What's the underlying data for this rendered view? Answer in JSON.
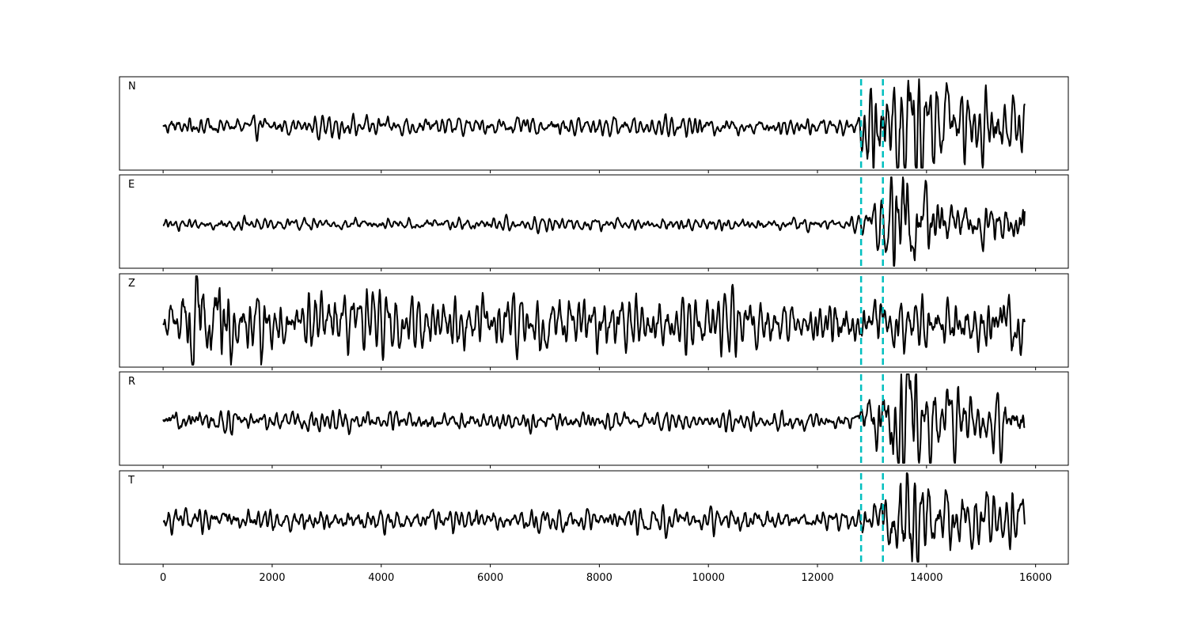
{
  "chart_data": {
    "type": "line",
    "layout": "five vertically stacked panels sharing the x-axis",
    "x_range": [
      -800,
      16600
    ],
    "x_ticks": [
      "0",
      "2000",
      "4000",
      "6000",
      "8000",
      "10000",
      "12000",
      "14000",
      "16000"
    ],
    "y_ticks_shown": false,
    "trace_x_extent": [
      0,
      15800
    ],
    "line_color": "#000000",
    "marker_color": "#00bfbf",
    "vertical_markers": [
      {
        "x": 12800,
        "style": "dashed"
      },
      {
        "x": 13200,
        "style": "dashed"
      }
    ],
    "panels": [
      {
        "label": "N",
        "noise": 0.22,
        "noise_start": 0.25,
        "envelope": [
          [
            1300,
            0.18
          ],
          [
            12700,
            0.17
          ],
          [
            12900,
            0.75
          ],
          [
            13700,
            1.25
          ],
          [
            14300,
            0.7
          ],
          [
            15800,
            0.45
          ]
        ],
        "peaks": [
          {
            "x": 13040,
            "a": 0.55
          },
          {
            "x": 13150,
            "a": -0.55
          },
          {
            "x": 13680,
            "a": 1.1
          },
          {
            "x": 13620,
            "a": -0.9
          },
          {
            "x": 14380,
            "a": 0.6
          }
        ]
      },
      {
        "label": "E",
        "noise": 0.12,
        "noise_start": 0.12,
        "envelope": [
          [
            1300,
            0.12
          ],
          [
            12600,
            0.12
          ],
          [
            13000,
            0.35
          ],
          [
            13600,
            1.25
          ],
          [
            14200,
            0.4
          ],
          [
            15800,
            0.45
          ]
        ],
        "peaks": [
          {
            "x": 13020,
            "a": 0.35
          },
          {
            "x": 13630,
            "a": 1.05
          },
          {
            "x": 13700,
            "a": -1.05
          },
          {
            "x": 13990,
            "a": 0.5
          }
        ],
        "end_value": 0.35
      },
      {
        "label": "Z",
        "noise": 0.45,
        "noise_start": 0.4,
        "envelope": [
          [
            300,
            0.45
          ],
          [
            400,
            1.2
          ],
          [
            900,
            1.1
          ],
          [
            1400,
            0.55
          ],
          [
            13000,
            0.45
          ],
          [
            15800,
            0.55
          ]
        ],
        "peaks": [
          {
            "x": 420,
            "a": 1.15
          },
          {
            "x": 480,
            "a": -1.1
          },
          {
            "x": 780,
            "a": 0.7
          },
          {
            "x": 820,
            "a": -0.6
          },
          {
            "x": 15640,
            "a": -0.6
          },
          {
            "x": 15480,
            "a": 0.6
          }
        ]
      },
      {
        "label": "R",
        "noise": 0.2,
        "noise_start": 0.2,
        "envelope": [
          [
            1300,
            0.2
          ],
          [
            12700,
            0.15
          ],
          [
            12900,
            0.65
          ],
          [
            13700,
            1.2
          ],
          [
            14300,
            0.6
          ],
          [
            15800,
            0.45
          ]
        ],
        "peaks": [
          {
            "x": 13020,
            "a": 0.7
          },
          {
            "x": 13120,
            "a": -0.6
          },
          {
            "x": 13650,
            "a": 1.3
          },
          {
            "x": 13580,
            "a": -1.1
          },
          {
            "x": 14380,
            "a": 0.55
          }
        ]
      },
      {
        "label": "T",
        "noise": 0.22,
        "noise_start": 0.22,
        "envelope": [
          [
            1300,
            0.22
          ],
          [
            12700,
            0.2
          ],
          [
            13000,
            0.3
          ],
          [
            13650,
            1.25
          ],
          [
            14200,
            0.6
          ],
          [
            15800,
            0.5
          ]
        ],
        "peaks": [
          {
            "x": 13040,
            "a": 0.3
          },
          {
            "x": 13620,
            "a": 1.3
          },
          {
            "x": 13600,
            "a": -1.3
          },
          {
            "x": 13700,
            "a": -0.7
          }
        ]
      }
    ]
  }
}
